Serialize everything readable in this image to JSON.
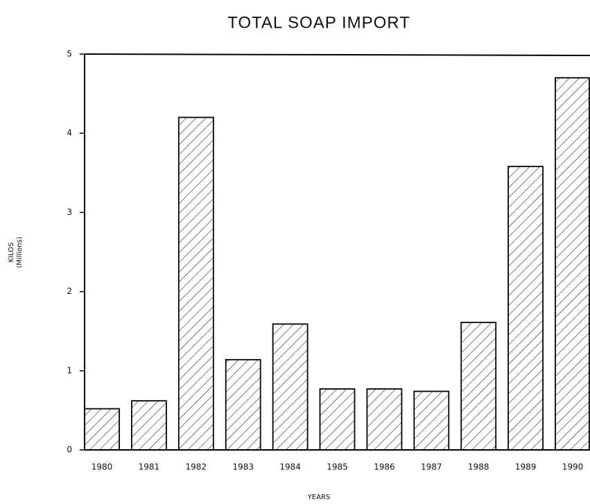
{
  "chart_data": {
    "type": "bar",
    "title": "TOTAL SOAP IMPORT",
    "x_label": "YEARS",
    "y_label": [
      "KILOS",
      "(Millions)"
    ],
    "categories": [
      "1980",
      "1981",
      "1982",
      "1983",
      "1984",
      "1985",
      "1986",
      "1987",
      "1988",
      "1989",
      "1990"
    ],
    "values": [
      0.52,
      0.62,
      4.2,
      1.14,
      1.59,
      0.77,
      0.77,
      0.74,
      1.61,
      3.58,
      4.7
    ],
    "color": "#000000",
    "ylim": [
      0,
      5
    ],
    "yticks": [
      0,
      1,
      2,
      3,
      4,
      5
    ],
    "grid": false
  }
}
